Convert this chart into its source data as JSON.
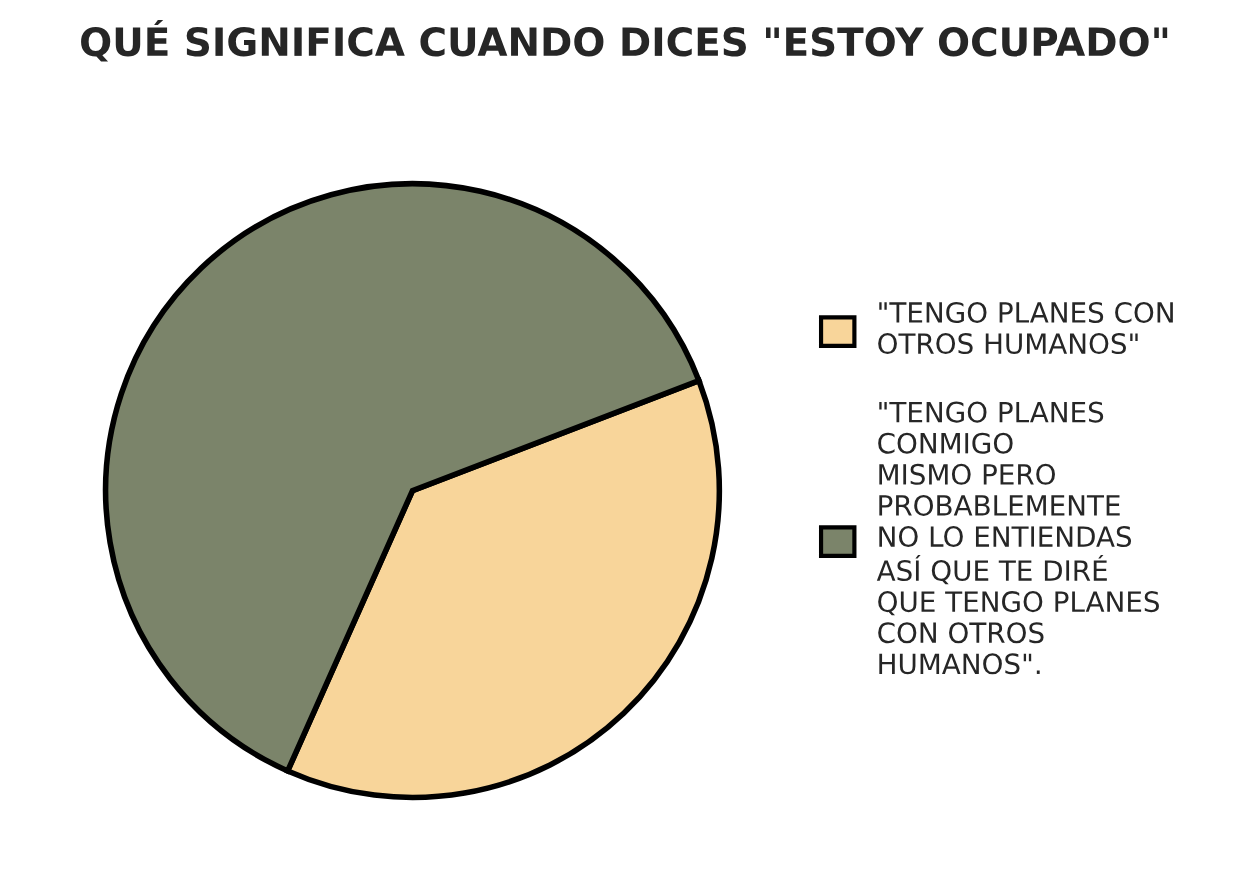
{
  "chart_data": {
    "type": "pie",
    "title": "QUÉ SIGNIFICA CUANDO DICES \"ESTOY OCUPADO\"",
    "categories": [
      "\"TENGO PLANES CON\nOTROS HUMANOS\"",
      "\"TENGO PLANES\nCONMIGO\nMISMO PERO\nPROBABLEMENTE\nNO LO ENTIENDAS\nASÍ QUE TE DIRÉ\nQUE TENGO PLANES\nCON OTROS\nHUMANOS\"."
    ],
    "values": [
      37.5,
      62.5
    ],
    "colors": [
      "#f8d59a",
      "#7b846a"
    ],
    "legend": "right"
  }
}
